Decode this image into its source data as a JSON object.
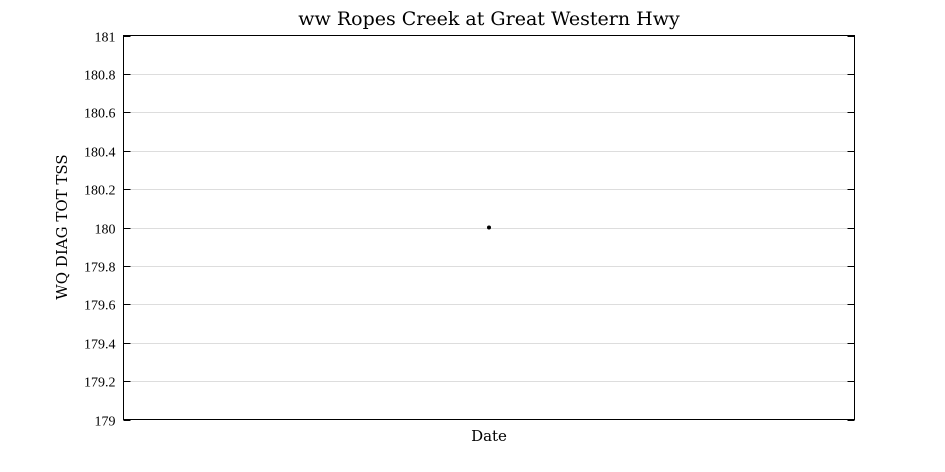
{
  "chart_data": {
    "type": "scatter",
    "title": "ww Ropes Creek at Great Western Hwy",
    "xlabel": "Date",
    "ylabel": "WQ DIAG TOT TSS",
    "ylim": [
      179,
      181
    ],
    "yticks": [
      179,
      179.2,
      179.4,
      179.6,
      179.8,
      180,
      180.2,
      180.4,
      180.6,
      180.8,
      181
    ],
    "ytick_labels": [
      "179",
      "179.2",
      "179.4",
      "179.6",
      "179.8",
      "180",
      "180.2",
      "180.4",
      "180.6",
      "180.8",
      "181"
    ],
    "grid": true,
    "series": [
      {
        "color": "#000000",
        "points": [
          {
            "y": 180
          }
        ]
      }
    ]
  }
}
